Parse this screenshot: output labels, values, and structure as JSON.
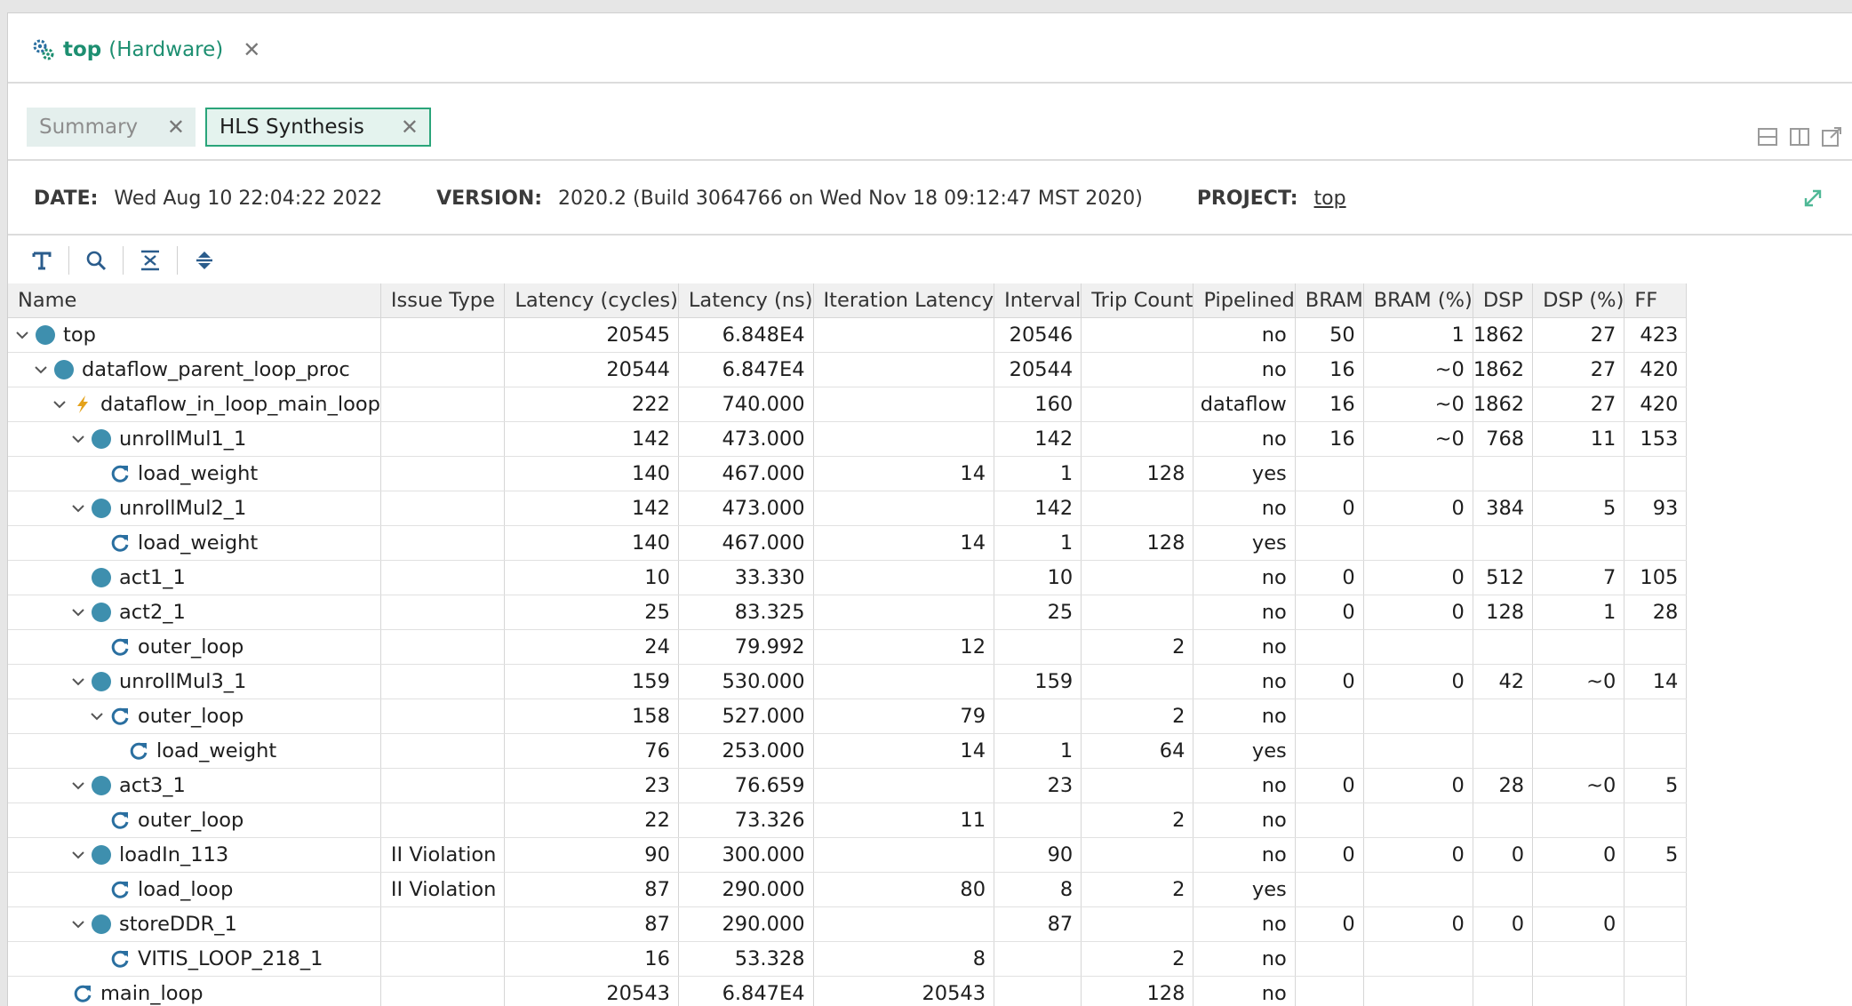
{
  "editor_tab": {
    "title": "top",
    "subtitle": "(Hardware)"
  },
  "report_tabs": [
    {
      "label": "Summary",
      "active": false
    },
    {
      "label": "HLS Synthesis",
      "active": true
    }
  ],
  "info": {
    "date_label": "DATE:",
    "date_value": "Wed Aug 10 22:04:22 2022",
    "version_label": "VERSION:",
    "version_value": "2020.2 (Build 3064766 on Wed Nov 18 09:12:47 MST 2020)",
    "project_label": "PROJECT:",
    "project_value": "top"
  },
  "toolbar": {
    "icons": [
      "text-format-icon",
      "search-icon",
      "collapse-all-icon",
      "expand-all-icon"
    ]
  },
  "colors": {
    "accent": "#1d8f71",
    "module_dot": "#3e8fae",
    "loop_icon": "#2a6fa0",
    "dataflow_icon": "#e4a21a"
  },
  "table": {
    "columns": [
      "Name",
      "Issue Type",
      "Latency (cycles)",
      "Latency (ns)",
      "Iteration Latency",
      "Interval",
      "Trip Count",
      "Pipelined",
      "BRAM",
      "BRAM (%)",
      "DSP",
      "DSP (%)",
      "FF"
    ],
    "rows": [
      {
        "name": "top",
        "depth": 0,
        "expand": "open",
        "icon": "module",
        "cells": [
          "",
          "20545",
          "6.848E4",
          "",
          "20546",
          "",
          "no",
          "50",
          "1",
          "1862",
          "27",
          "423"
        ]
      },
      {
        "name": "dataflow_parent_loop_proc",
        "depth": 1,
        "expand": "open",
        "icon": "module",
        "cells": [
          "",
          "20544",
          "6.847E4",
          "",
          "20544",
          "",
          "no",
          "16",
          "~0",
          "1862",
          "27",
          "420"
        ]
      },
      {
        "name": "dataflow_in_loop_main_loop",
        "depth": 2,
        "expand": "open",
        "icon": "dataflow",
        "cells": [
          "",
          "222",
          "740.000",
          "",
          "160",
          "",
          "dataflow",
          "16",
          "~0",
          "1862",
          "27",
          "420"
        ]
      },
      {
        "name": "unrollMul1_1",
        "depth": 3,
        "expand": "open",
        "icon": "module",
        "cells": [
          "",
          "142",
          "473.000",
          "",
          "142",
          "",
          "no",
          "16",
          "~0",
          "768",
          "11",
          "153"
        ]
      },
      {
        "name": "load_weight",
        "depth": 4,
        "expand": "none",
        "icon": "loop",
        "cells": [
          "",
          "140",
          "467.000",
          "14",
          "1",
          "128",
          "yes",
          "",
          "",
          "",
          "",
          ""
        ]
      },
      {
        "name": "unrollMul2_1",
        "depth": 3,
        "expand": "open",
        "icon": "module",
        "cells": [
          "",
          "142",
          "473.000",
          "",
          "142",
          "",
          "no",
          "0",
          "0",
          "384",
          "5",
          "93"
        ]
      },
      {
        "name": "load_weight",
        "depth": 4,
        "expand": "none",
        "icon": "loop",
        "cells": [
          "",
          "140",
          "467.000",
          "14",
          "1",
          "128",
          "yes",
          "",
          "",
          "",
          "",
          ""
        ]
      },
      {
        "name": "act1_1",
        "depth": 3,
        "expand": "none",
        "icon": "module",
        "cells": [
          "",
          "10",
          "33.330",
          "",
          "10",
          "",
          "no",
          "0",
          "0",
          "512",
          "7",
          "105"
        ]
      },
      {
        "name": "act2_1",
        "depth": 3,
        "expand": "open",
        "icon": "module",
        "cells": [
          "",
          "25",
          "83.325",
          "",
          "25",
          "",
          "no",
          "0",
          "0",
          "128",
          "1",
          "28"
        ]
      },
      {
        "name": "outer_loop",
        "depth": 4,
        "expand": "none",
        "icon": "loop",
        "cells": [
          "",
          "24",
          "79.992",
          "12",
          "",
          "2",
          "no",
          "",
          "",
          "",
          "",
          ""
        ]
      },
      {
        "name": "unrollMul3_1",
        "depth": 3,
        "expand": "open",
        "icon": "module",
        "cells": [
          "",
          "159",
          "530.000",
          "",
          "159",
          "",
          "no",
          "0",
          "0",
          "42",
          "~0",
          "14"
        ]
      },
      {
        "name": "outer_loop",
        "depth": 4,
        "expand": "open",
        "icon": "loop",
        "cells": [
          "",
          "158",
          "527.000",
          "79",
          "",
          "2",
          "no",
          "",
          "",
          "",
          "",
          ""
        ]
      },
      {
        "name": "load_weight",
        "depth": 5,
        "expand": "none",
        "icon": "loop",
        "cells": [
          "",
          "76",
          "253.000",
          "14",
          "1",
          "64",
          "yes",
          "",
          "",
          "",
          "",
          ""
        ]
      },
      {
        "name": "act3_1",
        "depth": 3,
        "expand": "open",
        "icon": "module",
        "cells": [
          "",
          "23",
          "76.659",
          "",
          "23",
          "",
          "no",
          "0",
          "0",
          "28",
          "~0",
          "5"
        ]
      },
      {
        "name": "outer_loop",
        "depth": 4,
        "expand": "none",
        "icon": "loop",
        "cells": [
          "",
          "22",
          "73.326",
          "11",
          "",
          "2",
          "no",
          "",
          "",
          "",
          "",
          ""
        ]
      },
      {
        "name": "loadIn_113",
        "depth": 3,
        "expand": "open",
        "icon": "module",
        "cells": [
          "II Violation",
          "90",
          "300.000",
          "",
          "90",
          "",
          "no",
          "0",
          "0",
          "0",
          "0",
          "5"
        ]
      },
      {
        "name": "load_loop",
        "depth": 4,
        "expand": "none",
        "icon": "loop",
        "cells": [
          "II Violation",
          "87",
          "290.000",
          "80",
          "8",
          "2",
          "yes",
          "",
          "",
          "",
          "",
          ""
        ]
      },
      {
        "name": "storeDDR_1",
        "depth": 3,
        "expand": "open",
        "icon": "module",
        "cells": [
          "",
          "87",
          "290.000",
          "",
          "87",
          "",
          "no",
          "0",
          "0",
          "0",
          "0",
          ""
        ]
      },
      {
        "name": "VITIS_LOOP_218_1",
        "depth": 4,
        "expand": "none",
        "icon": "loop",
        "cells": [
          "",
          "16",
          "53.328",
          "8",
          "",
          "2",
          "no",
          "",
          "",
          "",
          "",
          ""
        ]
      },
      {
        "name": "main_loop",
        "depth": 2,
        "expand": "none",
        "icon": "loop",
        "cells": [
          "",
          "20543",
          "6.847E4",
          "20543",
          "",
          "128",
          "no",
          "",
          "",
          "",
          "",
          ""
        ]
      }
    ]
  }
}
